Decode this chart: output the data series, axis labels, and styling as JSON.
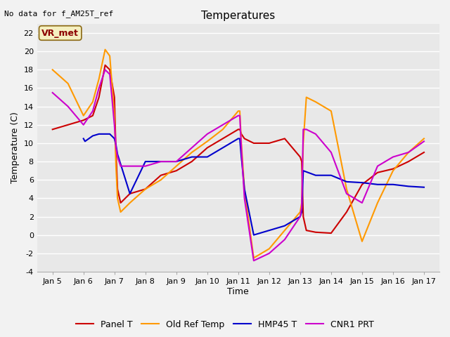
{
  "title": "Temperatures",
  "ylabel": "Temperature (C)",
  "xlabel": "Time",
  "annotation_text": "No data for f_AM25T_ref",
  "legend_label_text": "VR_met",
  "ylim": [
    -4,
    23
  ],
  "xlim": [
    -0.5,
    12.5
  ],
  "background_color": "#e8e8e8",
  "figure_color": "#f2f2f2",
  "xtick_labels": [
    "Jan 5",
    "Jan 6",
    "Jan 7",
    "Jan 8",
    "Jan 9",
    "Jan 10",
    "Jan 11",
    "Jan 12",
    "Jan 13",
    "Jan 14",
    "Jan 15",
    "Jan 16",
    "Jan 17"
  ],
  "xtick_positions": [
    0,
    1,
    2,
    3,
    4,
    5,
    6,
    7,
    8,
    9,
    10,
    11,
    12
  ],
  "ytick_positions": [
    -4,
    -2,
    0,
    2,
    4,
    6,
    8,
    10,
    12,
    14,
    16,
    18,
    20,
    22
  ],
  "colors": {
    "panel_t": "#cc0000",
    "old_ref": "#ff9900",
    "hmp45": "#0000cc",
    "cnr1": "#cc00cc"
  },
  "panel_t": {
    "x": [
      0,
      0.5,
      1.0,
      1.3,
      1.5,
      1.7,
      1.85,
      2.0,
      2.05,
      2.1,
      2.2,
      2.5,
      3.0,
      3.5,
      4.0,
      4.5,
      5.0,
      5.5,
      6.0,
      6.05,
      6.1,
      6.2,
      6.5,
      7.0,
      7.5,
      8.0,
      8.05,
      8.1,
      8.2,
      8.5,
      9.0,
      9.5,
      10.0,
      10.5,
      11.0,
      11.5,
      12.0
    ],
    "y": [
      11.5,
      12.0,
      12.5,
      13.0,
      15.0,
      18.5,
      18.0,
      15.0,
      9.0,
      5.0,
      3.5,
      4.5,
      5.0,
      6.5,
      7.0,
      8.0,
      9.5,
      10.5,
      11.5,
      11.5,
      11.0,
      10.5,
      10.0,
      10.0,
      10.5,
      8.5,
      8.0,
      2.0,
      0.5,
      0.3,
      0.2,
      2.5,
      5.5,
      6.8,
      7.2,
      8.0,
      9.0
    ]
  },
  "old_ref": {
    "x": [
      0,
      0.5,
      1.0,
      1.3,
      1.5,
      1.7,
      1.85,
      2.0,
      2.05,
      2.1,
      2.2,
      2.5,
      3.0,
      3.5,
      4.0,
      4.5,
      5.0,
      5.5,
      6.0,
      6.05,
      6.1,
      6.2,
      6.5,
      7.0,
      7.5,
      8.0,
      8.05,
      8.1,
      8.2,
      8.5,
      9.0,
      9.5,
      10.0,
      10.5,
      11.0,
      11.5,
      12.0
    ],
    "y": [
      18.0,
      16.5,
      13.0,
      14.5,
      17.0,
      20.2,
      19.5,
      13.0,
      7.5,
      4.0,
      2.5,
      3.5,
      5.0,
      6.0,
      7.5,
      9.0,
      10.2,
      11.5,
      13.5,
      13.5,
      10.0,
      5.0,
      -2.5,
      -1.5,
      0.5,
      2.5,
      3.5,
      10.0,
      15.0,
      14.5,
      13.5,
      5.0,
      -0.7,
      3.5,
      7.0,
      9.0,
      10.5
    ]
  },
  "hmp45": {
    "x": [
      1.0,
      1.05,
      1.3,
      1.5,
      1.7,
      1.85,
      2.0,
      2.05,
      2.1,
      2.5,
      3.0,
      3.5,
      4.0,
      4.5,
      5.0,
      5.5,
      6.0,
      6.05,
      6.1,
      6.2,
      6.5,
      7.0,
      7.5,
      8.0,
      8.05,
      8.1,
      8.5,
      9.0,
      9.5,
      10.0,
      10.5,
      11.0,
      11.5,
      12.0
    ],
    "y": [
      10.5,
      10.2,
      10.8,
      11.0,
      11.0,
      11.0,
      10.5,
      9.8,
      8.8,
      4.5,
      8.0,
      8.0,
      8.0,
      8.5,
      8.5,
      9.5,
      10.5,
      10.5,
      8.5,
      5.0,
      0.0,
      0.5,
      1.0,
      2.0,
      2.5,
      7.0,
      6.5,
      6.5,
      5.8,
      5.7,
      5.5,
      5.5,
      5.3,
      5.2
    ]
  },
  "cnr1": {
    "x": [
      0,
      0.5,
      1.0,
      1.3,
      1.5,
      1.7,
      1.85,
      2.0,
      2.05,
      2.1,
      2.2,
      2.5,
      3.0,
      3.5,
      4.0,
      4.5,
      5.0,
      5.5,
      6.0,
      6.05,
      6.1,
      6.2,
      6.5,
      7.0,
      7.5,
      8.0,
      8.05,
      8.1,
      8.2,
      8.5,
      9.0,
      9.5,
      10.0,
      10.5,
      11.0,
      11.5,
      12.0
    ],
    "y": [
      15.5,
      14.0,
      12.0,
      13.5,
      16.0,
      18.0,
      17.5,
      12.0,
      9.5,
      8.5,
      7.5,
      7.5,
      7.5,
      8.0,
      8.0,
      9.5,
      11.0,
      12.0,
      13.0,
      13.0,
      9.5,
      4.0,
      -2.8,
      -2.0,
      -0.5,
      2.0,
      3.0,
      11.5,
      11.5,
      11.0,
      9.0,
      4.5,
      3.5,
      7.5,
      8.5,
      9.0,
      10.2
    ]
  }
}
